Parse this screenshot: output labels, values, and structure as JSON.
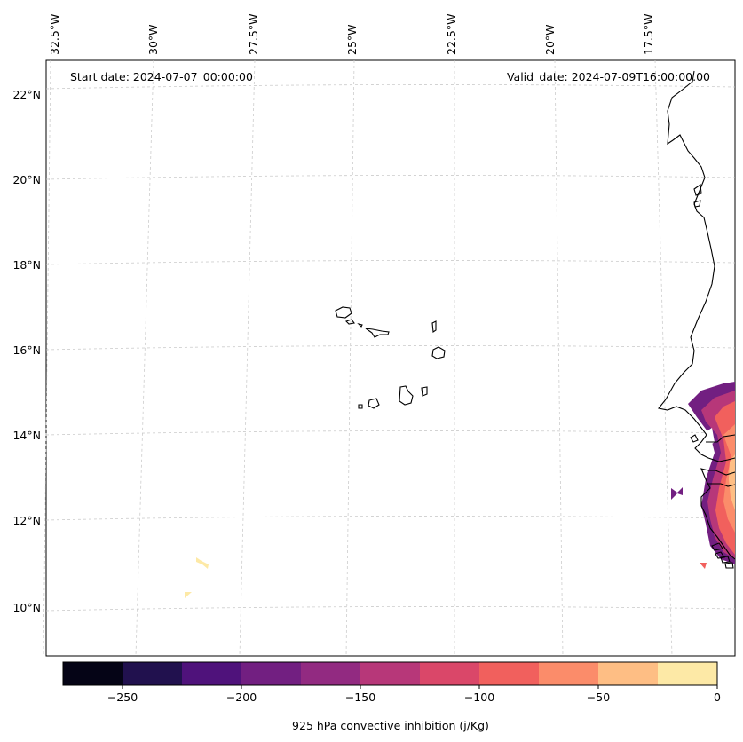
{
  "map": {
    "start_date": "Start date: 2024-07-07_00:00:00",
    "valid_date": "Valid_date: 2024-07-09T16:00:00.00"
  },
  "lon_labels": [
    "32.5°W",
    "30°W",
    "27.5°W",
    "25°W",
    "22.5°W",
    "20°W",
    "17.5°W"
  ],
  "lat_labels": [
    "22°N",
    "20°N",
    "18°N",
    "16°N",
    "14°N",
    "12°N",
    "10°N"
  ],
  "colorbar": {
    "label": "925 hPa convective inhibition (j/Kg)",
    "ticks": [
      "−250",
      "−200",
      "−150",
      "−100",
      "−50",
      "0"
    ],
    "bounds": [
      -275,
      0
    ],
    "levels": [
      -275,
      -250,
      -225,
      -200,
      -175,
      -150,
      -125,
      -100,
      -75,
      -50,
      -25,
      0
    ],
    "colors": [
      "#050416",
      "#21114e",
      "#4f127b",
      "#721f81",
      "#922a81",
      "#b73779",
      "#da4769",
      "#f1605d",
      "#fb8c6a",
      "#febe84",
      "#fde9a6"
    ]
  }
}
